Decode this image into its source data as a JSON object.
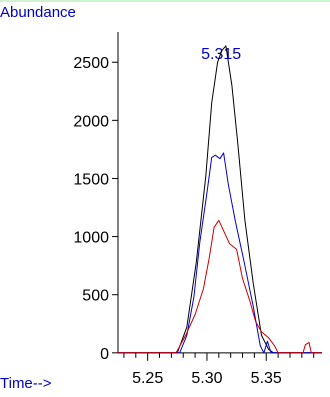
{
  "chart_data": {
    "type": "line",
    "ylabel": "Abundance",
    "xlabel": "Time-->",
    "xlim": [
      5.225,
      5.397
    ],
    "ylim": [
      -10,
      2760
    ],
    "x_ticks": [
      "5.25",
      "5.30",
      "5.35"
    ],
    "x_tick_values": [
      5.25,
      5.3,
      5.35
    ],
    "y_ticks": [
      "0",
      "500",
      "1000",
      "1500",
      "2000",
      "2500"
    ],
    "y_tick_values": [
      0,
      500,
      1000,
      1500,
      2000,
      2500
    ],
    "peak_annotation": {
      "text": "5.315",
      "x": 5.312,
      "y": 2580
    },
    "colors": {
      "axis": "#000000",
      "label_text": "#0000cc",
      "annotation_text": "#0000cc",
      "top_border": "#9fe7a0"
    },
    "series": [
      {
        "color": "#000000",
        "x": [
          5.225,
          5.275,
          5.283,
          5.291,
          5.299,
          5.304,
          5.309,
          5.3125,
          5.316,
          5.321,
          5.326,
          5.332,
          5.339,
          5.346,
          5.352,
          5.356,
          5.36,
          5.397
        ],
        "y": [
          0,
          0,
          220,
          780,
          1520,
          2150,
          2500,
          2600,
          2640,
          2300,
          1800,
          1140,
          600,
          150,
          30,
          0,
          0,
          0
        ]
      },
      {
        "color": "#0000cc",
        "x": [
          5.225,
          5.277,
          5.283,
          5.289,
          5.294,
          5.3,
          5.304,
          5.307,
          5.311,
          5.314,
          5.318,
          5.324,
          5.331,
          5.339,
          5.345,
          5.348,
          5.351,
          5.354,
          5.397
        ],
        "y": [
          0,
          0,
          150,
          480,
          950,
          1380,
          1680,
          1700,
          1670,
          1720,
          1450,
          1130,
          800,
          400,
          60,
          0,
          100,
          0,
          0
        ]
      },
      {
        "color": "#cc0000",
        "x": [
          5.225,
          5.274,
          5.282,
          5.29,
          5.297,
          5.302,
          5.306,
          5.31,
          5.314,
          5.319,
          5.325,
          5.33,
          5.336,
          5.341,
          5.346,
          5.352,
          5.357,
          5.36,
          5.381,
          5.383,
          5.386,
          5.388,
          5.397
        ],
        "y": [
          0,
          0,
          150,
          330,
          550,
          820,
          1080,
          1140,
          1050,
          940,
          890,
          640,
          450,
          270,
          180,
          130,
          60,
          0,
          0,
          70,
          90,
          0,
          0
        ]
      }
    ]
  }
}
